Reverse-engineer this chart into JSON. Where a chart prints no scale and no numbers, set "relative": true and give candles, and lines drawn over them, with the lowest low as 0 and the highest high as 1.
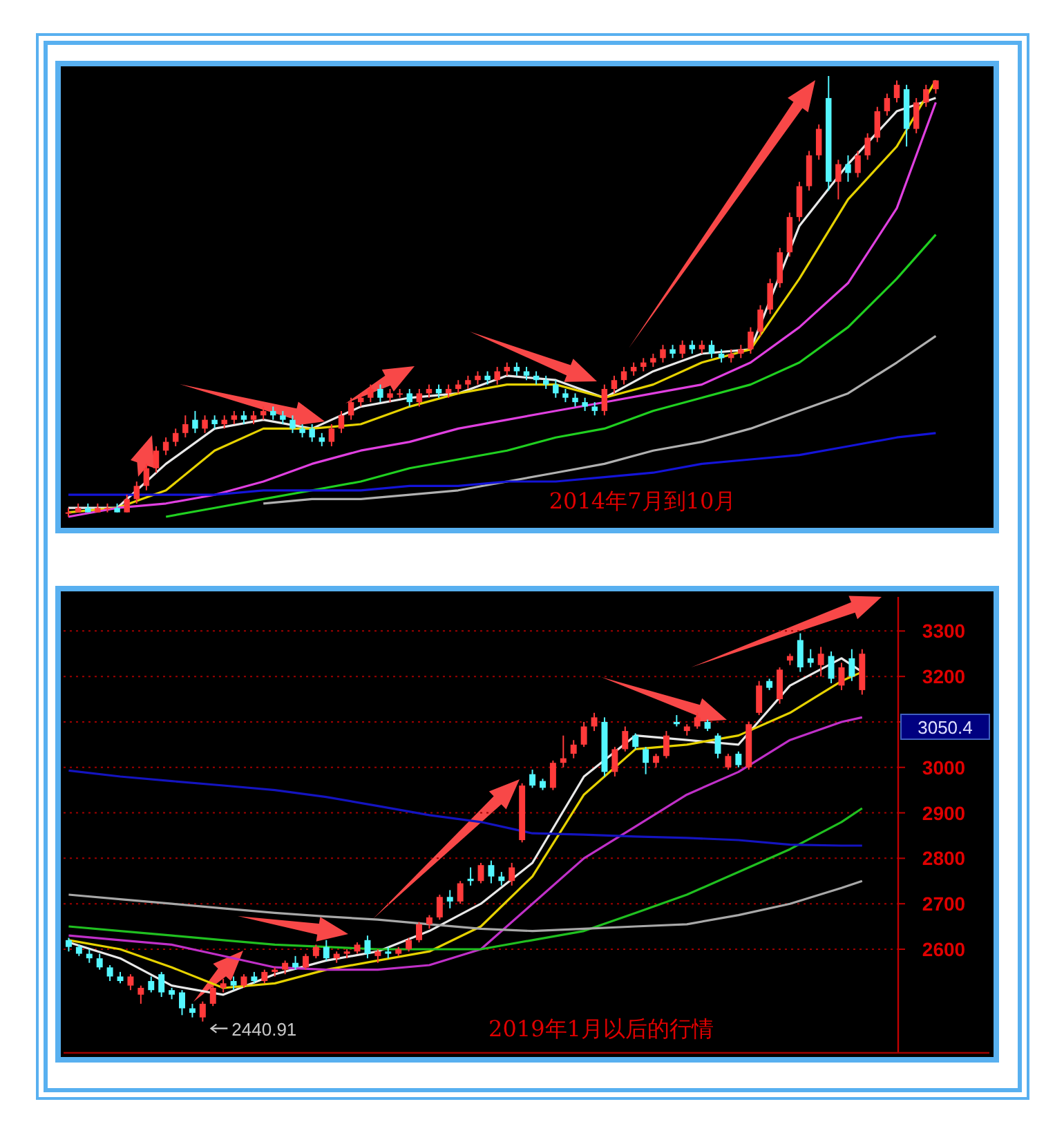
{
  "chart_data": [
    {
      "type": "candlestick",
      "relative": true,
      "colors": [
        "#ff3a3a",
        "#ff3a3a",
        "#54f6ff",
        "#ff3a3a",
        "#ff3a3a",
        "#54f6ff",
        "#ff3a3a",
        "#ff3a3a",
        "#ff3a3a",
        "#ff3a3a",
        "#ff3a3a",
        "#ff3a3a",
        "#ff3a3a",
        "#54f6ff",
        "#ff3a3a",
        "#54f6ff",
        "#ff3a3a",
        "#ff3a3a",
        "#54f6ff",
        "#ff3a3a",
        "#ff3a3a",
        "#54f6ff",
        "#54f6ff",
        "#54f6ff",
        "#54f6ff",
        "#54f6ff",
        "#54f6ff",
        "#ff3a3a",
        "#ff3a3a",
        "#ff3a3a",
        "#ff3a3a",
        "#ff3a3a",
        "#54f6ff",
        "#ff3a3a",
        "#ff3a3a",
        "#54f6ff",
        "#ff3a3a",
        "#ff3a3a",
        "#54f6ff",
        "#ff3a3a",
        "#ff3a3a",
        "#ff3a3a",
        "#ff3a3a",
        "#54f6ff",
        "#ff3a3a",
        "#ff3a3a",
        "#54f6ff",
        "#54f6ff",
        "#54f6ff",
        "#54f6ff",
        "#54f6ff",
        "#54f6ff",
        "#54f6ff",
        "#54f6ff",
        "#54f6ff",
        "#ff3a3a",
        "#ff3a3a",
        "#ff3a3a",
        "#ff3a3a",
        "#ff3a3a",
        "#ff3a3a",
        "#ff3a3a",
        "#54f6ff",
        "#ff3a3a",
        "#54f6ff",
        "#ff3a3a",
        "#54f6ff",
        "#54f6ff",
        "#ff3a3a",
        "#ff3a3a",
        "#ff3a3a",
        "#ff3a3a",
        "#ff3a3a",
        "#ff3a3a",
        "#ff3a3a",
        "#ff3a3a",
        "#ff3a3a",
        "#ff3a3a",
        "#54f6ff",
        "#ff3a3a",
        "#54f6ff",
        "#ff3a3a",
        "#ff3a3a",
        "#ff3a3a",
        "#ff3a3a",
        "#ff3a3a",
        "#54f6ff",
        "#ff3a3a",
        "#ff3a3a",
        "#ff3a3a"
      ],
      "categories": [
        null,
        null,
        null,
        null,
        null,
        null,
        null,
        null,
        null,
        null,
        null,
        null,
        null,
        null,
        null,
        null,
        null,
        null,
        null,
        null,
        null,
        null,
        null,
        null,
        null,
        null,
        null,
        null,
        null,
        null,
        null,
        null,
        null,
        null,
        null,
        null,
        null,
        null,
        null,
        null,
        null,
        null,
        null,
        null,
        null,
        null,
        null,
        null,
        null,
        null,
        null,
        null,
        null,
        null,
        null,
        null,
        null,
        null,
        null,
        null,
        null,
        null,
        null,
        null,
        null,
        null,
        null,
        null,
        null,
        null,
        null,
        null,
        null,
        null,
        null,
        null,
        null,
        null,
        null,
        null,
        null,
        null,
        null,
        null,
        null,
        null,
        null,
        null,
        null,
        null
      ],
      "ohlc": [
        [
          0.01,
          0.02,
          0,
          0.01
        ],
        [
          0.01,
          0.03,
          0.01,
          0.02
        ],
        [
          0.02,
          0.03,
          0.01,
          0.01
        ],
        [
          0.01,
          0.03,
          0.01,
          0.02
        ],
        [
          0.02,
          0.03,
          0.01,
          0.02
        ],
        [
          0.02,
          0.03,
          0.01,
          0.01
        ],
        [
          0.01,
          0.05,
          0.01,
          0.04
        ],
        [
          0.04,
          0.08,
          0.03,
          0.07
        ],
        [
          0.07,
          0.12,
          0.06,
          0.11
        ],
        [
          0.11,
          0.16,
          0.1,
          0.15
        ],
        [
          0.15,
          0.18,
          0.14,
          0.17
        ],
        [
          0.17,
          0.2,
          0.16,
          0.19
        ],
        [
          0.19,
          0.23,
          0.18,
          0.21
        ],
        [
          0.22,
          0.24,
          0.19,
          0.2
        ],
        [
          0.2,
          0.23,
          0.19,
          0.22
        ],
        [
          0.22,
          0.23,
          0.2,
          0.21
        ],
        [
          0.21,
          0.23,
          0.2,
          0.22
        ],
        [
          0.22,
          0.24,
          0.21,
          0.23
        ],
        [
          0.23,
          0.24,
          0.21,
          0.22
        ],
        [
          0.22,
          0.24,
          0.21,
          0.23
        ],
        [
          0.23,
          0.25,
          0.22,
          0.24
        ],
        [
          0.24,
          0.25,
          0.22,
          0.23
        ],
        [
          0.23,
          0.24,
          0.21,
          0.22
        ],
        [
          0.22,
          0.23,
          0.19,
          0.2
        ],
        [
          0.2,
          0.21,
          0.18,
          0.19
        ],
        [
          0.2,
          0.21,
          0.17,
          0.18
        ],
        [
          0.18,
          0.19,
          0.16,
          0.17
        ],
        [
          0.17,
          0.21,
          0.16,
          0.2
        ],
        [
          0.2,
          0.24,
          0.19,
          0.23
        ],
        [
          0.23,
          0.27,
          0.22,
          0.26
        ],
        [
          0.26,
          0.28,
          0.25,
          0.27
        ],
        [
          0.27,
          0.3,
          0.26,
          0.29
        ],
        [
          0.29,
          0.3,
          0.26,
          0.27
        ],
        [
          0.27,
          0.29,
          0.26,
          0.28
        ],
        [
          0.28,
          0.29,
          0.27,
          0.28
        ],
        [
          0.28,
          0.29,
          0.25,
          0.26
        ],
        [
          0.26,
          0.29,
          0.25,
          0.28
        ],
        [
          0.28,
          0.3,
          0.27,
          0.29
        ],
        [
          0.29,
          0.3,
          0.27,
          0.28
        ],
        [
          0.28,
          0.3,
          0.27,
          0.29
        ],
        [
          0.29,
          0.31,
          0.28,
          0.3
        ],
        [
          0.3,
          0.32,
          0.29,
          0.31
        ],
        [
          0.31,
          0.33,
          0.3,
          0.32
        ],
        [
          0.32,
          0.33,
          0.3,
          0.31
        ],
        [
          0.31,
          0.34,
          0.3,
          0.33
        ],
        [
          0.33,
          0.35,
          0.32,
          0.34
        ],
        [
          0.34,
          0.35,
          0.32,
          0.33
        ],
        [
          0.33,
          0.34,
          0.31,
          0.32
        ],
        [
          0.32,
          0.33,
          0.3,
          0.31
        ],
        [
          0.31,
          0.32,
          0.29,
          0.3
        ],
        [
          0.3,
          0.31,
          0.27,
          0.28
        ],
        [
          0.28,
          0.29,
          0.26,
          0.27
        ],
        [
          0.27,
          0.28,
          0.25,
          0.26
        ],
        [
          0.26,
          0.27,
          0.24,
          0.25
        ],
        [
          0.25,
          0.26,
          0.23,
          0.24
        ],
        [
          0.24,
          0.3,
          0.23,
          0.29
        ],
        [
          0.29,
          0.32,
          0.28,
          0.31
        ],
        [
          0.31,
          0.34,
          0.3,
          0.33
        ],
        [
          0.33,
          0.35,
          0.32,
          0.34
        ],
        [
          0.34,
          0.36,
          0.33,
          0.35
        ],
        [
          0.35,
          0.37,
          0.34,
          0.36
        ],
        [
          0.36,
          0.39,
          0.35,
          0.38
        ],
        [
          0.38,
          0.39,
          0.36,
          0.37
        ],
        [
          0.37,
          0.4,
          0.36,
          0.39
        ],
        [
          0.39,
          0.4,
          0.37,
          0.38
        ],
        [
          0.38,
          0.4,
          0.37,
          0.39
        ],
        [
          0.39,
          0.4,
          0.36,
          0.37
        ],
        [
          0.37,
          0.38,
          0.35,
          0.36
        ],
        [
          0.36,
          0.38,
          0.35,
          0.37
        ],
        [
          0.37,
          0.39,
          0.36,
          0.38
        ],
        [
          0.38,
          0.43,
          0.37,
          0.42
        ],
        [
          0.42,
          0.48,
          0.41,
          0.47
        ],
        [
          0.47,
          0.54,
          0.46,
          0.53
        ],
        [
          0.53,
          0.61,
          0.52,
          0.6
        ],
        [
          0.6,
          0.69,
          0.59,
          0.68
        ],
        [
          0.68,
          0.76,
          0.67,
          0.75
        ],
        [
          0.75,
          0.83,
          0.74,
          0.82
        ],
        [
          0.82,
          0.89,
          0.81,
          0.88
        ],
        [
          0.95,
          1,
          0.74,
          0.76
        ],
        [
          0.76,
          0.81,
          0.72,
          0.8
        ],
        [
          0.8,
          0.82,
          0.76,
          0.78
        ],
        [
          0.78,
          0.83,
          0.77,
          0.82
        ],
        [
          0.82,
          0.87,
          0.81,
          0.86
        ],
        [
          0.86,
          0.93,
          0.85,
          0.92
        ],
        [
          0.92,
          0.96,
          0.91,
          0.95
        ],
        [
          0.95,
          0.99,
          0.94,
          0.98
        ],
        [
          0.97,
          0.98,
          0.84,
          0.88
        ],
        [
          0.88,
          0.95,
          0.87,
          0.94
        ],
        [
          0.94,
          0.98,
          0.93,
          0.97
        ],
        [
          0.97,
          0.99,
          0.96,
          0.99
        ]
      ],
      "series": [
        {
          "type": "line",
          "color": "#e8e8e8",
          "values": [
            0.02,
            null,
            null,
            null,
            null,
            0.02,
            null,
            null,
            null,
            null,
            0.12,
            null,
            null,
            null,
            null,
            0.2,
            null,
            null,
            null,
            null,
            0.22,
            null,
            null,
            null,
            null,
            0.2,
            null,
            null,
            null,
            null,
            0.25,
            null,
            null,
            null,
            null,
            0.27,
            null,
            null,
            null,
            null,
            0.28,
            null,
            null,
            null,
            null,
            0.32,
            null,
            null,
            null,
            null,
            0.31,
            null,
            null,
            null,
            null,
            0.27,
            null,
            null,
            null,
            null,
            0.33,
            null,
            null,
            null,
            null,
            0.37,
            null,
            null,
            null,
            null,
            0.38,
            null,
            null,
            null,
            null,
            0.66,
            null,
            null,
            null,
            null,
            0.8,
            null,
            null,
            null,
            null,
            0.92,
            null,
            null,
            null,
            0.95
          ]
        },
        {
          "type": "line",
          "color": "#e6d200",
          "values": [
            0.01,
            null,
            null,
            null,
            null,
            0.02,
            null,
            null,
            null,
            null,
            0.06,
            null,
            null,
            null,
            null,
            0.15,
            null,
            null,
            null,
            null,
            0.2,
            null,
            null,
            null,
            null,
            0.2,
            null,
            null,
            null,
            null,
            0.21,
            null,
            null,
            null,
            null,
            0.25,
            null,
            null,
            null,
            null,
            0.28,
            null,
            null,
            null,
            null,
            0.3,
            null,
            null,
            null,
            null,
            0.3,
            null,
            null,
            null,
            null,
            0.27,
            null,
            null,
            null,
            null,
            0.3,
            null,
            null,
            null,
            null,
            0.35,
            null,
            null,
            null,
            null,
            0.38,
            null,
            null,
            null,
            null,
            0.54,
            null,
            null,
            null,
            null,
            0.72,
            null,
            null,
            null,
            null,
            0.84,
            null,
            null,
            null,
            0.99
          ]
        },
        {
          "type": "line",
          "color": "#e040e0",
          "values": [
            0,
            null,
            null,
            null,
            null,
            0.02,
            null,
            null,
            null,
            null,
            0.03,
            null,
            null,
            null,
            null,
            0.05,
            null,
            null,
            null,
            null,
            0.08,
            null,
            null,
            null,
            null,
            0.12,
            null,
            null,
            null,
            null,
            0.15,
            null,
            null,
            null,
            null,
            0.17,
            null,
            null,
            null,
            null,
            0.2,
            null,
            null,
            null,
            null,
            0.22,
            null,
            null,
            null,
            null,
            0.24,
            null,
            null,
            null,
            null,
            0.26,
            null,
            null,
            null,
            null,
            0.28,
            null,
            null,
            null,
            null,
            0.3,
            null,
            null,
            null,
            null,
            0.35,
            null,
            null,
            null,
            null,
            0.43,
            null,
            null,
            null,
            null,
            0.53,
            null,
            null,
            null,
            null,
            0.7,
            null,
            null,
            null,
            0.94
          ]
        },
        {
          "type": "line",
          "color": "#20d020",
          "values": [
            null,
            null,
            null,
            null,
            null,
            null,
            null,
            null,
            null,
            null,
            0,
            null,
            null,
            null,
            null,
            0.02,
            null,
            null,
            null,
            null,
            0.04,
            null,
            null,
            null,
            null,
            0.06,
            null,
            null,
            null,
            null,
            0.08,
            null,
            null,
            null,
            null,
            0.11,
            null,
            null,
            null,
            null,
            0.13,
            null,
            null,
            null,
            null,
            0.15,
            null,
            null,
            null,
            null,
            0.18,
            null,
            null,
            null,
            null,
            0.2,
            null,
            null,
            null,
            null,
            0.24,
            null,
            null,
            null,
            null,
            0.27,
            null,
            null,
            null,
            null,
            0.3,
            null,
            null,
            null,
            null,
            0.35,
            null,
            null,
            null,
            null,
            0.43,
            null,
            null,
            null,
            null,
            0.54,
            null,
            null,
            null,
            0.64
          ]
        },
        {
          "type": "line",
          "color": "#b0b0b0",
          "values": [
            null,
            null,
            null,
            null,
            null,
            null,
            null,
            null,
            null,
            null,
            null,
            null,
            null,
            null,
            null,
            null,
            null,
            null,
            null,
            null,
            0.03,
            null,
            null,
            null,
            null,
            0.04,
            null,
            null,
            null,
            null,
            0.04,
            null,
            null,
            null,
            null,
            0.05,
            null,
            null,
            null,
            null,
            0.06,
            null,
            null,
            null,
            null,
            0.08,
            null,
            null,
            null,
            null,
            0.1,
            null,
            null,
            null,
            null,
            0.12,
            null,
            null,
            null,
            null,
            0.15,
            null,
            null,
            null,
            null,
            0.17,
            null,
            null,
            null,
            null,
            0.2,
            null,
            null,
            null,
            null,
            0.24,
            null,
            null,
            null,
            null,
            0.28,
            null,
            null,
            null,
            null,
            0.35,
            null,
            null,
            null,
            0.41
          ]
        },
        {
          "type": "line",
          "color": "#1414d8",
          "values": [
            0.05,
            null,
            null,
            null,
            null,
            0.05,
            null,
            null,
            null,
            null,
            0.05,
            null,
            null,
            null,
            null,
            0.05,
            null,
            null,
            null,
            null,
            0.06,
            null,
            null,
            null,
            null,
            0.06,
            null,
            null,
            null,
            null,
            0.06,
            null,
            null,
            null,
            null,
            0.07,
            null,
            null,
            null,
            null,
            0.07,
            null,
            null,
            null,
            null,
            0.08,
            null,
            null,
            null,
            null,
            0.08,
            null,
            null,
            null,
            null,
            0.09,
            null,
            null,
            null,
            null,
            0.1,
            null,
            null,
            null,
            null,
            0.12,
            null,
            null,
            null,
            null,
            0.13,
            null,
            null,
            null,
            null,
            0.14,
            null,
            null,
            null,
            null,
            0.16,
            null,
            null,
            null,
            null,
            0.18,
            null,
            null,
            null,
            0.19
          ]
        }
      ],
      "annotations": [
        "2014年7月到10月"
      ]
    },
    {
      "type": "candlestick",
      "ylim": [
        2372,
        3375
      ],
      "yticks": [
        2600,
        2700,
        2800,
        2900,
        3000,
        {
          "value": 3100,
          "label": null
        },
        3200,
        3300
      ],
      "grid": "y",
      "colors": [
        "#54f6ff",
        "#54f6ff",
        "#54f6ff",
        "#54f6ff",
        "#54f6ff",
        "#54f6ff",
        "#ff3a3a",
        "#ff3a3a",
        "#54f6ff",
        "#54f6ff",
        "#54f6ff",
        "#54f6ff",
        "#54f6ff",
        "#ff3a3a",
        "#ff3a3a",
        "#ff3a3a",
        "#54f6ff",
        "#ff3a3a",
        "#54f6ff",
        "#ff3a3a",
        "#ff3a3a",
        "#ff3a3a",
        "#54f6ff",
        "#ff3a3a",
        "#ff3a3a",
        "#54f6ff",
        "#ff3a3a",
        "#ff3a3a",
        "#ff3a3a",
        "#54f6ff",
        "#ff3a3a",
        "#54f6ff",
        "#ff3a3a",
        "#ff3a3a",
        "#ff3a3a",
        "#ff3a3a",
        "#ff3a3a",
        "#54f6ff",
        "#ff3a3a",
        "#54f6ff",
        "#ff3a3a",
        "#54f6ff",
        "#54f6ff",
        "#ff3a3a",
        "#ff3a3a",
        "#54f6ff",
        "#54f6ff",
        "#ff3a3a",
        "#ff3a3a",
        "#ff3a3a",
        "#ff3a3a",
        "#ff3a3a",
        "#54f6ff",
        "#ff3a3a",
        "#ff3a3a",
        "#54f6ff",
        "#54f6ff",
        "#ff3a3a",
        "#ff3a3a",
        "#54f6ff",
        "#ff3a3a",
        "#ff3a3a",
        "#54f6ff",
        "#54f6ff",
        "#ff3a3a",
        "#54f6ff",
        "#ff3a3a",
        "#ff3a3a",
        "#54f6ff",
        "#ff3a3a",
        "#ff3a3a",
        "#54f6ff",
        "#54f6ff",
        "#ff3a3a",
        "#54f6ff",
        "#ff3a3a",
        "#54f6ff",
        "#ff3a3a"
      ],
      "categories": [
        null,
        null,
        null,
        null,
        null,
        null,
        null,
        null,
        null,
        null,
        null,
        null,
        null,
        null,
        null,
        null,
        null,
        null,
        null,
        null,
        null,
        null,
        null,
        null,
        null,
        null,
        null,
        null,
        null,
        null,
        null,
        null,
        null,
        null,
        null,
        null,
        null,
        null,
        null,
        null,
        null,
        null,
        null,
        null,
        null,
        null,
        null,
        null,
        null,
        null,
        null,
        null,
        null,
        null,
        null,
        null,
        null,
        null,
        null,
        null,
        null,
        null,
        null,
        null,
        null,
        null,
        null,
        null,
        null,
        null,
        null,
        null,
        null,
        null,
        null,
        null,
        null,
        null
      ],
      "ohlc": [
        [
          2620,
          2625,
          2595,
          2605
        ],
        [
          2605,
          2610,
          2585,
          2590
        ],
        [
          2590,
          2600,
          2570,
          2580
        ],
        [
          2580,
          2590,
          2555,
          2560
        ],
        [
          2560,
          2565,
          2530,
          2540
        ],
        [
          2540,
          2550,
          2525,
          2530
        ],
        [
          2520,
          2545,
          2510,
          2540
        ],
        [
          2500,
          2520,
          2480,
          2515
        ],
        [
          2530,
          2540,
          2505,
          2510
        ],
        [
          2545,
          2550,
          2495,
          2505
        ],
        [
          2510,
          2515,
          2490,
          2500
        ],
        [
          2505,
          2510,
          2455,
          2470
        ],
        [
          2470,
          2480,
          2450,
          2460
        ],
        [
          2450,
          2485,
          2440.91,
          2480
        ],
        [
          2480,
          2520,
          2475,
          2515
        ],
        [
          2515,
          2535,
          2505,
          2525
        ],
        [
          2530,
          2540,
          2510,
          2520
        ],
        [
          2520,
          2545,
          2515,
          2540
        ],
        [
          2540,
          2550,
          2525,
          2530
        ],
        [
          2530,
          2555,
          2525,
          2550
        ],
        [
          2550,
          2560,
          2540,
          2555
        ],
        [
          2555,
          2575,
          2545,
          2570
        ],
        [
          2570,
          2585,
          2555,
          2560
        ],
        [
          2560,
          2590,
          2555,
          2585
        ],
        [
          2585,
          2610,
          2580,
          2605
        ],
        [
          2605,
          2620,
          2575,
          2580
        ],
        [
          2580,
          2595,
          2570,
          2590
        ],
        [
          2590,
          2600,
          2580,
          2595
        ],
        [
          2595,
          2615,
          2590,
          2610
        ],
        [
          2620,
          2630,
          2580,
          2590
        ],
        [
          2585,
          2600,
          2570,
          2595
        ],
        [
          2595,
          2605,
          2580,
          2590
        ],
        [
          2590,
          2605,
          2585,
          2600
        ],
        [
          2600,
          2625,
          2595,
          2620
        ],
        [
          2620,
          2660,
          2615,
          2655
        ],
        [
          2655,
          2675,
          2645,
          2670
        ],
        [
          2670,
          2720,
          2665,
          2715
        ],
        [
          2715,
          2730,
          2690,
          2705
        ],
        [
          2705,
          2750,
          2700,
          2745
        ],
        [
          2755,
          2780,
          2740,
          2750
        ],
        [
          2750,
          2790,
          2745,
          2785
        ],
        [
          2785,
          2795,
          2745,
          2760
        ],
        [
          2760,
          2770,
          2740,
          2750
        ],
        [
          2750,
          2790,
          2740,
          2780
        ],
        [
          2840,
          2965,
          2835,
          2960
        ],
        [
          2985,
          2995,
          2955,
          2960
        ],
        [
          2970,
          2975,
          2950,
          2955
        ],
        [
          2955,
          3015,
          2950,
          3010
        ],
        [
          3010,
          3070,
          3000,
          3020
        ],
        [
          3030,
          3060,
          3020,
          3050
        ],
        [
          3050,
          3100,
          3045,
          3090
        ],
        [
          3090,
          3120,
          3080,
          3110
        ],
        [
          3100,
          3110,
          2980,
          2990
        ],
        [
          2990,
          3045,
          2980,
          3040
        ],
        [
          3040,
          3090,
          3035,
          3080
        ],
        [
          3070,
          3075,
          3040,
          3045
        ],
        [
          3040,
          3045,
          2985,
          3010
        ],
        [
          3010,
          3030,
          3000,
          3025
        ],
        [
          3025,
          3080,
          3020,
          3070
        ],
        [
          3100,
          3115,
          3090,
          3095
        ],
        [
          3080,
          3095,
          3070,
          3090
        ],
        [
          3090,
          3120,
          3085,
          3110
        ],
        [
          3100,
          3105,
          3080,
          3085
        ],
        [
          3070,
          3075,
          3020,
          3030
        ],
        [
          3000,
          3030,
          2995,
          3025
        ],
        [
          3030,
          3035,
          3000,
          3005
        ],
        [
          3000,
          3100,
          2995,
          3095
        ],
        [
          3120,
          3190,
          3115,
          3180
        ],
        [
          3190,
          3195,
          3170,
          3175
        ],
        [
          3150,
          3220,
          3140,
          3215
        ],
        [
          3235,
          3250,
          3225,
          3245
        ],
        [
          3280,
          3295,
          3210,
          3220
        ],
        [
          3240,
          3260,
          3220,
          3230
        ],
        [
          3225,
          3265,
          3200,
          3250
        ],
        [
          3245,
          3255,
          3185,
          3195
        ],
        [
          3180,
          3230,
          3170,
          3220
        ],
        [
          3240,
          3260,
          3190,
          3200
        ],
        [
          3170,
          3260,
          3160,
          3250
        ]
      ],
      "series": [
        {
          "type": "line",
          "color": "#e8e8e8",
          "values": [
            2615,
            null,
            null,
            null,
            null,
            2580,
            null,
            null,
            null,
            null,
            2520,
            null,
            null,
            null,
            null,
            2500,
            null,
            null,
            null,
            null,
            2545,
            null,
            null,
            null,
            null,
            2575,
            null,
            null,
            null,
            null,
            2595,
            null,
            null,
            null,
            null,
            2640,
            null,
            null,
            null,
            null,
            2700,
            null,
            null,
            null,
            null,
            2790,
            null,
            null,
            null,
            null,
            2980,
            null,
            null,
            null,
            null,
            3070,
            null,
            null,
            null,
            null,
            3060,
            null,
            null,
            null,
            null,
            3050,
            null,
            null,
            null,
            null,
            3180,
            null,
            null,
            null,
            null,
            3240,
            null,
            3210
          ]
        },
        {
          "type": "line",
          "color": "#e6d200",
          "values": [
            2620,
            null,
            null,
            null,
            null,
            2600,
            null,
            null,
            null,
            null,
            2560,
            null,
            null,
            null,
            null,
            2515,
            null,
            null,
            null,
            null,
            2525,
            null,
            null,
            null,
            null,
            2555,
            null,
            null,
            null,
            null,
            2575,
            null,
            null,
            null,
            null,
            2595,
            null,
            null,
            null,
            null,
            2650,
            null,
            null,
            null,
            null,
            2760,
            null,
            null,
            null,
            null,
            2940,
            null,
            null,
            null,
            null,
            3040,
            null,
            null,
            null,
            null,
            3050,
            null,
            null,
            null,
            null,
            3070,
            null,
            null,
            null,
            null,
            3120,
            null,
            null,
            null,
            null,
            3190,
            null,
            3210
          ]
        },
        {
          "type": "line",
          "color": "#c030c8",
          "values": [
            2630,
            null,
            null,
            null,
            null,
            2620,
            null,
            null,
            null,
            null,
            2610,
            null,
            null,
            null,
            null,
            2585,
            null,
            null,
            null,
            null,
            2560,
            null,
            null,
            null,
            null,
            2555,
            null,
            null,
            null,
            null,
            2555,
            null,
            null,
            null,
            null,
            2565,
            null,
            null,
            null,
            null,
            2600,
            null,
            null,
            null,
            null,
            2700,
            null,
            null,
            null,
            null,
            2800,
            null,
            null,
            null,
            null,
            2870,
            null,
            null,
            null,
            null,
            2940,
            null,
            null,
            null,
            null,
            2990,
            null,
            null,
            null,
            null,
            3060,
            null,
            null,
            null,
            null,
            3100,
            null,
            3110
          ]
        },
        {
          "type": "line",
          "color": "#20c020",
          "values": [
            2650,
            null,
            null,
            null,
            null,
            2640,
            null,
            null,
            null,
            null,
            2630,
            null,
            null,
            null,
            null,
            2620,
            null,
            null,
            null,
            null,
            2610,
            null,
            null,
            null,
            null,
            2605,
            null,
            null,
            null,
            null,
            2600,
            null,
            null,
            null,
            null,
            2600,
            null,
            null,
            null,
            null,
            2600,
            null,
            null,
            null,
            null,
            2620,
            null,
            null,
            null,
            null,
            2640,
            null,
            null,
            null,
            null,
            2680,
            null,
            null,
            null,
            null,
            2720,
            null,
            null,
            null,
            null,
            2770,
            null,
            null,
            null,
            null,
            2820,
            null,
            null,
            null,
            null,
            2880,
            null,
            2910
          ]
        },
        {
          "type": "line",
          "color": "#a8a8a8",
          "values": [
            2720,
            null,
            null,
            null,
            null,
            2710,
            null,
            null,
            null,
            null,
            2700,
            null,
            null,
            null,
            null,
            2690,
            null,
            null,
            null,
            null,
            2680,
            null,
            null,
            null,
            null,
            2672,
            null,
            null,
            null,
            null,
            2665,
            null,
            null,
            null,
            null,
            2655,
            null,
            null,
            null,
            null,
            2645,
            null,
            null,
            null,
            null,
            2640,
            null,
            null,
            null,
            null,
            2645,
            null,
            null,
            null,
            null,
            2650,
            null,
            null,
            null,
            null,
            2655,
            null,
            null,
            null,
            null,
            2675,
            null,
            null,
            null,
            null,
            2700,
            null,
            null,
            null,
            null,
            2735,
            null,
            2750
          ]
        },
        {
          "type": "line",
          "color": "#1414c0",
          "values": [
            2993,
            null,
            null,
            null,
            null,
            2980,
            null,
            null,
            null,
            null,
            2970,
            null,
            null,
            null,
            null,
            2960,
            null,
            null,
            null,
            null,
            2950,
            null,
            null,
            null,
            null,
            2935,
            null,
            null,
            null,
            null,
            2915,
            null,
            null,
            null,
            null,
            2895,
            null,
            null,
            null,
            null,
            2880,
            null,
            null,
            null,
            null,
            2855,
            null,
            null,
            null,
            null,
            2852,
            null,
            null,
            null,
            null,
            2848,
            null,
            null,
            null,
            null,
            2845,
            null,
            null,
            null,
            null,
            2840,
            null,
            null,
            null,
            null,
            2830,
            null,
            null,
            null,
            null,
            2828,
            null,
            2828
          ]
        }
      ],
      "annotations": [
        "2019年1月以后的行情",
        "2440.91",
        "3050.4"
      ]
    }
  ]
}
